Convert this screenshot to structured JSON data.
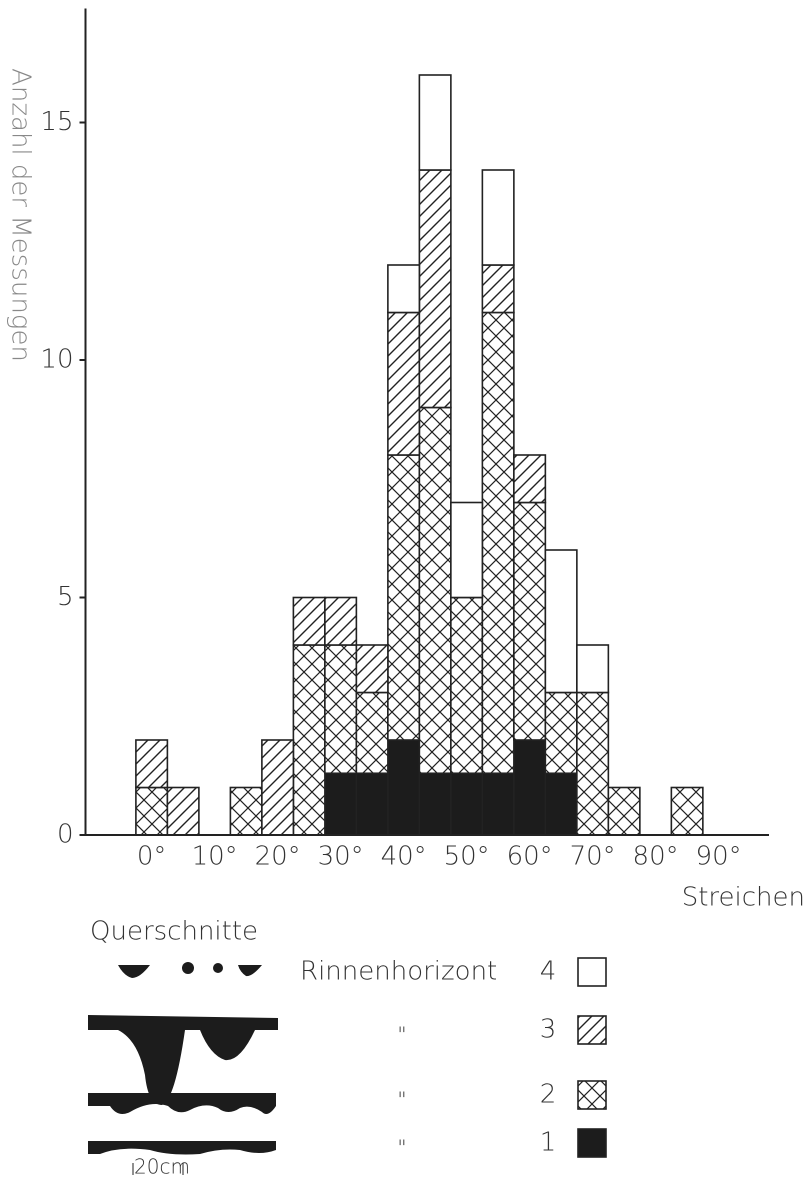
{
  "chart_data": {
    "type": "histogram",
    "y_label": "Anzahl der Messungen",
    "x_label": "Streichen",
    "bins": [
      -2.5,
      2.5,
      7.5,
      12.5,
      17.5,
      22.5,
      27.5,
      32.5,
      37.5,
      42.5,
      47.5,
      52.5,
      57.5,
      62.5,
      67.5,
      72.5,
      77.5,
      82.5,
      87.5
    ],
    "series": [
      {
        "name": "1",
        "color": "#1c1c1c",
        "fill": "solid",
        "values": [
          0,
          0,
          0,
          0,
          0,
          0,
          1.3,
          1.3,
          2,
          1.3,
          1.3,
          1.3,
          2,
          1.3,
          0,
          0,
          0,
          0
        ]
      },
      {
        "name": "2",
        "color": "#1c1c1c",
        "fill": "crosshatch",
        "values": [
          1,
          0,
          0,
          1,
          0,
          4,
          2.7,
          1.7,
          6,
          7.7,
          3.7,
          9.7,
          5,
          1.7,
          3,
          1,
          0,
          1
        ]
      },
      {
        "name": "3",
        "color": "#1c1c1c",
        "fill": "hatch",
        "values": [
          1,
          1,
          0,
          0,
          2,
          1,
          1,
          1,
          3,
          5,
          0,
          1,
          1,
          0,
          0,
          0,
          0,
          0
        ]
      },
      {
        "name": "4",
        "color": "#1c1c1c",
        "fill": "open",
        "values": [
          0,
          0,
          0,
          0,
          0,
          0,
          0,
          0,
          1,
          2,
          2,
          2,
          0,
          3,
          1,
          0,
          0,
          0
        ]
      }
    ],
    "xlim": [
      -10.5,
      98
    ],
    "ylim": [
      0,
      17.4
    ],
    "xticks": [
      {
        "value": 0,
        "label": "0°"
      },
      {
        "value": 10,
        "label": "10°"
      },
      {
        "value": 20,
        "label": "20°"
      },
      {
        "value": 30,
        "label": "30°"
      },
      {
        "value": 40,
        "label": "40°"
      },
      {
        "value": 50,
        "label": "50°"
      },
      {
        "value": 60,
        "label": "60°"
      },
      {
        "value": 70,
        "label": "70°"
      },
      {
        "value": 80,
        "label": "80°"
      },
      {
        "value": 90,
        "label": "90°"
      }
    ],
    "yticks": [
      0,
      5,
      10,
      15
    ],
    "legend_title": "Rinnenhorizont",
    "ditto": "\""
  },
  "cross_sections": {
    "title": "Querschnitte",
    "scale_label": "20cm"
  }
}
